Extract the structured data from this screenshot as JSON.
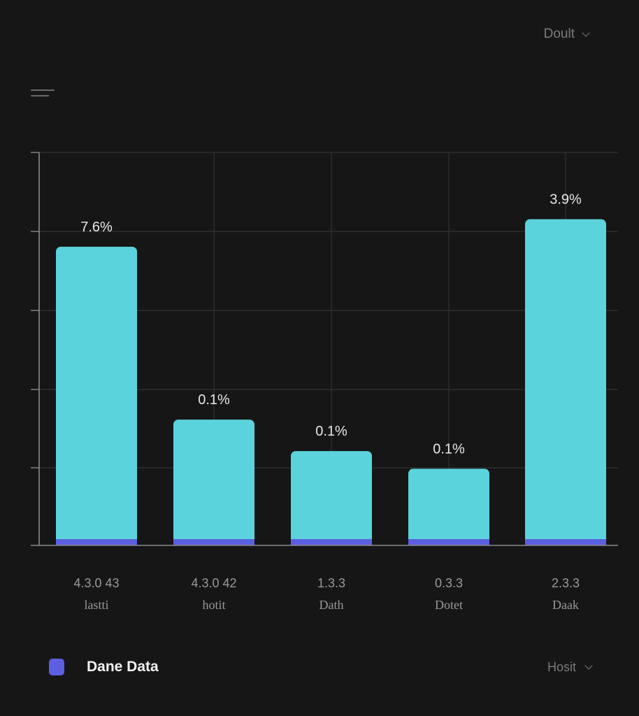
{
  "header": {
    "dropdown_label": "Doult"
  },
  "footer": {
    "legend_label": "Dane Data",
    "dropdown_label": "Hosit"
  },
  "colors": {
    "background": "#161616",
    "bar": "#5bd3dc",
    "bar_base": "#5b5fe0",
    "grid": "#2e2e2e",
    "axis": "#8a8a8a",
    "value_label": "#e8e8e8",
    "tick_label": "#9a9a9a"
  },
  "chart_data": {
    "type": "bar",
    "categories": [
      [
        "4.3.0 43",
        "lastti"
      ],
      [
        "4.3.0 42",
        "hotit"
      ],
      [
        "1.3.3",
        "Dath"
      ],
      [
        "0.3.3",
        "Dotet"
      ],
      [
        "2.3.3",
        "Daak"
      ]
    ],
    "series": [
      {
        "values": [
          76,
          32,
          24,
          19.5,
          83
        ],
        "labels": [
          "7.6%",
          "0.1%",
          "0.1%",
          "0.1%",
          "3.9%"
        ]
      }
    ],
    "ylim": [
      0,
      100
    ],
    "grid": true,
    "legend_position": "bottom-left",
    "title": "",
    "xlabel": "",
    "ylabel": ""
  }
}
